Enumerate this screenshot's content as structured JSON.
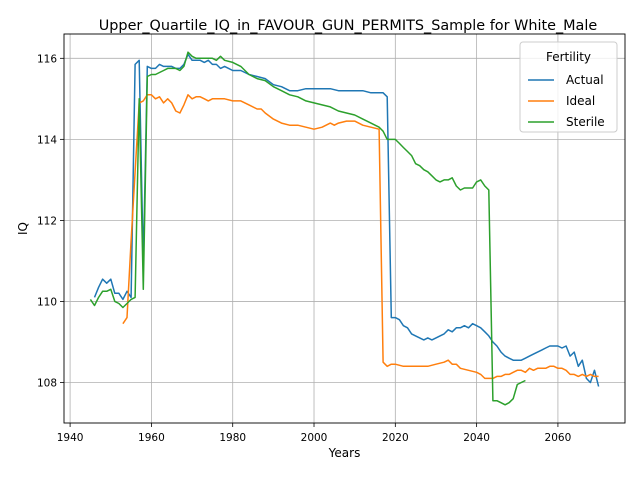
{
  "chart_data": {
    "type": "line",
    "title": "Upper_Quartile_IQ_in_FAVOUR_GUN_PERMITS_Sample for White_Male",
    "xlabel": "Years",
    "ylabel": "IQ",
    "xlim": [
      1938.5,
      2076.5
    ],
    "ylim": [
      107.0,
      116.6
    ],
    "xticks": [
      1940,
      1960,
      1980,
      2000,
      2020,
      2040,
      2060
    ],
    "yticks": [
      108,
      110,
      112,
      114,
      116
    ],
    "grid": true,
    "legend": {
      "title": "Fertility",
      "position": "top-right"
    },
    "series": [
      {
        "name": "Actual",
        "color": "#1f77b4",
        "points": [
          [
            1946,
            110.1
          ],
          [
            1947,
            110.35
          ],
          [
            1948,
            110.55
          ],
          [
            1949,
            110.45
          ],
          [
            1950,
            110.55
          ],
          [
            1951,
            110.2
          ],
          [
            1952,
            110.2
          ],
          [
            1953,
            110.05
          ],
          [
            1954,
            110.25
          ],
          [
            1955,
            110.1
          ],
          [
            1956,
            115.85
          ],
          [
            1957,
            115.95
          ],
          [
            1958,
            110.9
          ],
          [
            1959,
            115.8
          ],
          [
            1960,
            115.75
          ],
          [
            1961,
            115.75
          ],
          [
            1962,
            115.85
          ],
          [
            1963,
            115.8
          ],
          [
            1964,
            115.8
          ],
          [
            1965,
            115.8
          ],
          [
            1966,
            115.75
          ],
          [
            1967,
            115.75
          ],
          [
            1968,
            115.85
          ],
          [
            1969,
            116.1
          ],
          [
            1970,
            115.95
          ],
          [
            1971,
            115.95
          ],
          [
            1972,
            115.95
          ],
          [
            1973,
            115.9
          ],
          [
            1974,
            115.95
          ],
          [
            1975,
            115.85
          ],
          [
            1976,
            115.85
          ],
          [
            1977,
            115.75
          ],
          [
            1978,
            115.8
          ],
          [
            1979,
            115.75
          ],
          [
            1980,
            115.7
          ],
          [
            1982,
            115.7
          ],
          [
            1984,
            115.6
          ],
          [
            1986,
            115.55
          ],
          [
            1988,
            115.5
          ],
          [
            1990,
            115.35
          ],
          [
            1992,
            115.3
          ],
          [
            1994,
            115.2
          ],
          [
            1996,
            115.2
          ],
          [
            1998,
            115.25
          ],
          [
            2000,
            115.25
          ],
          [
            2002,
            115.25
          ],
          [
            2004,
            115.25
          ],
          [
            2006,
            115.2
          ],
          [
            2008,
            115.2
          ],
          [
            2010,
            115.2
          ],
          [
            2012,
            115.2
          ],
          [
            2014,
            115.15
          ],
          [
            2016,
            115.15
          ],
          [
            2017,
            115.15
          ],
          [
            2018,
            115.05
          ],
          [
            2019,
            109.6
          ],
          [
            2020,
            109.6
          ],
          [
            2021,
            109.55
          ],
          [
            2022,
            109.4
          ],
          [
            2023,
            109.35
          ],
          [
            2024,
            109.2
          ],
          [
            2025,
            109.15
          ],
          [
            2026,
            109.1
          ],
          [
            2027,
            109.05
          ],
          [
            2028,
            109.1
          ],
          [
            2029,
            109.05
          ],
          [
            2030,
            109.1
          ],
          [
            2031,
            109.15
          ],
          [
            2032,
            109.2
          ],
          [
            2033,
            109.3
          ],
          [
            2034,
            109.25
          ],
          [
            2035,
            109.35
          ],
          [
            2036,
            109.35
          ],
          [
            2037,
            109.4
          ],
          [
            2038,
            109.35
          ],
          [
            2039,
            109.45
          ],
          [
            2040,
            109.4
          ],
          [
            2041,
            109.35
          ],
          [
            2042,
            109.25
          ],
          [
            2043,
            109.15
          ],
          [
            2044,
            109.0
          ],
          [
            2045,
            108.9
          ],
          [
            2046,
            108.75
          ],
          [
            2047,
            108.65
          ],
          [
            2048,
            108.6
          ],
          [
            2049,
            108.55
          ],
          [
            2050,
            108.55
          ],
          [
            2051,
            108.55
          ],
          [
            2052,
            108.6
          ],
          [
            2053,
            108.65
          ],
          [
            2054,
            108.7
          ],
          [
            2055,
            108.75
          ],
          [
            2056,
            108.8
          ],
          [
            2057,
            108.85
          ],
          [
            2058,
            108.9
          ],
          [
            2059,
            108.9
          ],
          [
            2060,
            108.9
          ],
          [
            2061,
            108.85
          ],
          [
            2062,
            108.9
          ],
          [
            2063,
            108.65
          ],
          [
            2064,
            108.75
          ],
          [
            2065,
            108.4
          ],
          [
            2066,
            108.55
          ],
          [
            2067,
            108.1
          ],
          [
            2068,
            108.0
          ],
          [
            2069,
            108.3
          ],
          [
            2070,
            107.9
          ]
        ]
      },
      {
        "name": "Ideal",
        "color": "#ff7f0e",
        "points": [
          [
            1953,
            109.45
          ],
          [
            1954,
            109.6
          ],
          [
            1955,
            111.5
          ],
          [
            1956,
            113.2
          ],
          [
            1957,
            114.9
          ],
          [
            1958,
            114.95
          ],
          [
            1959,
            115.1
          ],
          [
            1960,
            115.1
          ],
          [
            1961,
            115.0
          ],
          [
            1962,
            115.05
          ],
          [
            1963,
            114.9
          ],
          [
            1964,
            115.0
          ],
          [
            1965,
            114.9
          ],
          [
            1966,
            114.7
          ],
          [
            1967,
            114.65
          ],
          [
            1968,
            114.85
          ],
          [
            1969,
            115.1
          ],
          [
            1970,
            115.0
          ],
          [
            1971,
            115.05
          ],
          [
            1972,
            115.05
          ],
          [
            1973,
            115.0
          ],
          [
            1974,
            114.95
          ],
          [
            1975,
            115.0
          ],
          [
            1976,
            115.0
          ],
          [
            1978,
            115.0
          ],
          [
            1980,
            114.95
          ],
          [
            1981,
            114.95
          ],
          [
            1982,
            114.95
          ],
          [
            1984,
            114.85
          ],
          [
            1986,
            114.75
          ],
          [
            1987,
            114.75
          ],
          [
            1988,
            114.65
          ],
          [
            1990,
            114.5
          ],
          [
            1992,
            114.4
          ],
          [
            1994,
            114.35
          ],
          [
            1996,
            114.35
          ],
          [
            1998,
            114.3
          ],
          [
            2000,
            114.25
          ],
          [
            2002,
            114.3
          ],
          [
            2004,
            114.4
          ],
          [
            2005,
            114.35
          ],
          [
            2006,
            114.4
          ],
          [
            2008,
            114.45
          ],
          [
            2010,
            114.45
          ],
          [
            2012,
            114.35
          ],
          [
            2014,
            114.3
          ],
          [
            2016,
            114.25
          ],
          [
            2017,
            108.5
          ],
          [
            2018,
            108.4
          ],
          [
            2019,
            108.45
          ],
          [
            2020,
            108.45
          ],
          [
            2022,
            108.4
          ],
          [
            2024,
            108.4
          ],
          [
            2026,
            108.4
          ],
          [
            2028,
            108.4
          ],
          [
            2030,
            108.45
          ],
          [
            2032,
            108.5
          ],
          [
            2033,
            108.55
          ],
          [
            2034,
            108.45
          ],
          [
            2035,
            108.45
          ],
          [
            2036,
            108.35
          ],
          [
            2038,
            108.3
          ],
          [
            2040,
            108.25
          ],
          [
            2041,
            108.2
          ],
          [
            2042,
            108.1
          ],
          [
            2043,
            108.1
          ],
          [
            2044,
            108.1
          ],
          [
            2045,
            108.15
          ],
          [
            2046,
            108.15
          ],
          [
            2047,
            108.2
          ],
          [
            2048,
            108.2
          ],
          [
            2049,
            108.25
          ],
          [
            2050,
            108.3
          ],
          [
            2051,
            108.3
          ],
          [
            2052,
            108.25
          ],
          [
            2053,
            108.35
          ],
          [
            2054,
            108.3
          ],
          [
            2055,
            108.35
          ],
          [
            2056,
            108.35
          ],
          [
            2057,
            108.35
          ],
          [
            2058,
            108.4
          ],
          [
            2059,
            108.4
          ],
          [
            2060,
            108.35
          ],
          [
            2061,
            108.35
          ],
          [
            2062,
            108.3
          ],
          [
            2063,
            108.2
          ],
          [
            2064,
            108.2
          ],
          [
            2065,
            108.15
          ],
          [
            2066,
            108.2
          ],
          [
            2067,
            108.15
          ],
          [
            2068,
            108.2
          ],
          [
            2069,
            108.15
          ],
          [
            2070,
            108.15
          ]
        ]
      },
      {
        "name": "Sterile",
        "color": "#2ca02c",
        "points": [
          [
            1945,
            110.05
          ],
          [
            1946,
            109.9
          ],
          [
            1947,
            110.1
          ],
          [
            1948,
            110.25
          ],
          [
            1949,
            110.25
          ],
          [
            1950,
            110.3
          ],
          [
            1951,
            110.0
          ],
          [
            1952,
            109.95
          ],
          [
            1953,
            109.85
          ],
          [
            1954,
            109.95
          ],
          [
            1955,
            110.05
          ],
          [
            1956,
            110.1
          ],
          [
            1957,
            115.0
          ],
          [
            1958,
            110.3
          ],
          [
            1959,
            115.55
          ],
          [
            1960,
            115.6
          ],
          [
            1961,
            115.6
          ],
          [
            1962,
            115.65
          ],
          [
            1963,
            115.7
          ],
          [
            1964,
            115.75
          ],
          [
            1965,
            115.75
          ],
          [
            1966,
            115.75
          ],
          [
            1967,
            115.7
          ],
          [
            1968,
            115.8
          ],
          [
            1969,
            116.15
          ],
          [
            1970,
            116.05
          ],
          [
            1971,
            116.0
          ],
          [
            1972,
            116.0
          ],
          [
            1973,
            116.0
          ],
          [
            1974,
            116.0
          ],
          [
            1975,
            116.0
          ],
          [
            1976,
            115.95
          ],
          [
            1977,
            116.05
          ],
          [
            1978,
            115.95
          ],
          [
            1980,
            115.9
          ],
          [
            1982,
            115.8
          ],
          [
            1984,
            115.6
          ],
          [
            1986,
            115.5
          ],
          [
            1988,
            115.45
          ],
          [
            1990,
            115.3
          ],
          [
            1992,
            115.2
          ],
          [
            1994,
            115.1
          ],
          [
            1996,
            115.05
          ],
          [
            1998,
            114.95
          ],
          [
            2000,
            114.9
          ],
          [
            2002,
            114.85
          ],
          [
            2004,
            114.8
          ],
          [
            2006,
            114.7
          ],
          [
            2008,
            114.65
          ],
          [
            2010,
            114.6
          ],
          [
            2012,
            114.5
          ],
          [
            2014,
            114.4
          ],
          [
            2016,
            114.3
          ],
          [
            2017,
            114.2
          ],
          [
            2018,
            114.0
          ],
          [
            2019,
            114.0
          ],
          [
            2020,
            114.0
          ],
          [
            2021,
            113.9
          ],
          [
            2022,
            113.8
          ],
          [
            2023,
            113.7
          ],
          [
            2024,
            113.6
          ],
          [
            2025,
            113.4
          ],
          [
            2026,
            113.35
          ],
          [
            2027,
            113.25
          ],
          [
            2028,
            113.2
          ],
          [
            2029,
            113.1
          ],
          [
            2030,
            113.0
          ],
          [
            2031,
            112.95
          ],
          [
            2032,
            113.0
          ],
          [
            2033,
            113.0
          ],
          [
            2034,
            113.05
          ],
          [
            2035,
            112.85
          ],
          [
            2036,
            112.75
          ],
          [
            2037,
            112.8
          ],
          [
            2038,
            112.8
          ],
          [
            2039,
            112.8
          ],
          [
            2040,
            112.95
          ],
          [
            2041,
            113.0
          ],
          [
            2042,
            112.85
          ],
          [
            2043,
            112.75
          ],
          [
            2044,
            107.55
          ],
          [
            2045,
            107.55
          ],
          [
            2046,
            107.5
          ],
          [
            2047,
            107.45
          ],
          [
            2048,
            107.5
          ],
          [
            2049,
            107.6
          ],
          [
            2050,
            107.95
          ],
          [
            2051,
            108.0
          ],
          [
            2052,
            108.05
          ]
        ]
      }
    ]
  }
}
